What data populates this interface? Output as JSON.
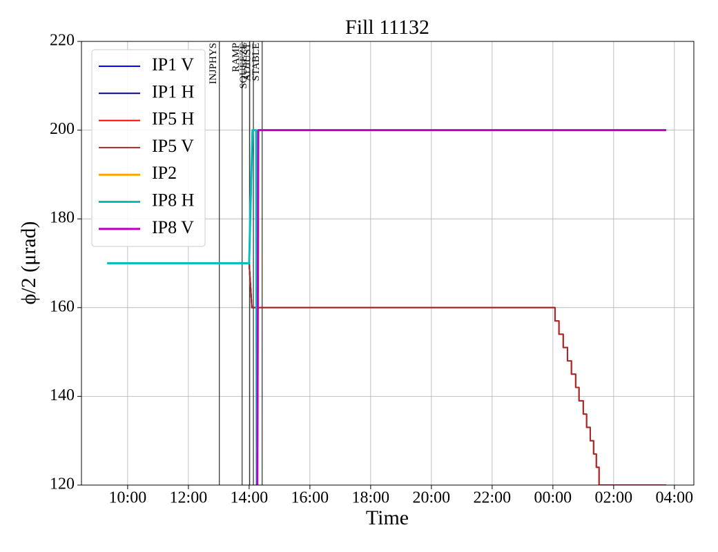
{
  "chart_data": {
    "type": "line",
    "title": "Fill 11132",
    "xlabel": "Time",
    "ylabel": "ϕ/2 (μrad)",
    "xlim": [
      8.48,
      28.64
    ],
    "ylim": [
      120,
      220
    ],
    "xticks": [
      {
        "value": 10,
        "label": "10:00"
      },
      {
        "value": 12,
        "label": "12:00"
      },
      {
        "value": 14,
        "label": "14:00"
      },
      {
        "value": 16,
        "label": "16:00"
      },
      {
        "value": 18,
        "label": "18:00"
      },
      {
        "value": 20,
        "label": "20:00"
      },
      {
        "value": 22,
        "label": "22:00"
      },
      {
        "value": 24,
        "label": "00:00"
      },
      {
        "value": 26,
        "label": "02:00"
      },
      {
        "value": 28,
        "label": "04:00"
      }
    ],
    "yticks": [
      120,
      140,
      160,
      180,
      200,
      220
    ],
    "grid": true,
    "legend": "upper left",
    "events": [
      {
        "label": "INJPHYS",
        "x": 13.02
      },
      {
        "label": "RAMP",
        "x": 13.77
      },
      {
        "label": "SQUEEZE",
        "x": 14.02
      },
      {
        "label": "ADJUST",
        "x": 14.14
      },
      {
        "label": "STABLE",
        "x": 14.43
      }
    ],
    "series": [
      {
        "name": "IP1 V",
        "color": "#0000ff",
        "linewidth": 2,
        "x": [
          9.33,
          14.0,
          14.09,
          14.25,
          14.25
        ],
        "values": [
          170,
          170,
          160,
          160,
          120
        ]
      },
      {
        "name": "IP1 H",
        "color": "#00008b",
        "linewidth": 2,
        "x": [
          9.33,
          14.0,
          14.09,
          14.25,
          14.25
        ],
        "values": [
          170,
          170,
          160,
          160,
          120
        ]
      },
      {
        "name": "IP5 H",
        "color": "#ff0000",
        "linewidth": 2,
        "x": [
          9.33,
          14.0,
          14.09,
          24.07,
          24.07,
          24.2,
          24.2,
          24.34,
          24.34,
          24.48,
          24.48,
          24.61,
          24.61,
          24.75,
          24.75,
          24.86,
          24.86,
          25.0,
          25.0,
          25.11,
          25.11,
          25.23,
          25.23,
          25.34,
          25.34,
          25.43,
          25.43,
          25.52,
          25.52,
          27.73
        ],
        "values": [
          170,
          170,
          160,
          160,
          157,
          157,
          154,
          154,
          151,
          151,
          148,
          148,
          145,
          145,
          142,
          142,
          139,
          139,
          136,
          136,
          133,
          133,
          130,
          130,
          127,
          127,
          124,
          124,
          120,
          120
        ]
      },
      {
        "name": "IP5 V",
        "color": "#a52a2a",
        "linewidth": 2,
        "x": [
          9.33,
          14.0,
          14.09,
          24.07,
          24.07,
          24.2,
          24.2,
          24.34,
          24.34,
          24.48,
          24.48,
          24.61,
          24.61,
          24.75,
          24.75,
          24.86,
          24.86,
          25.0,
          25.0,
          25.11,
          25.11,
          25.23,
          25.23,
          25.34,
          25.34,
          25.43,
          25.43,
          25.52,
          25.52,
          27.73
        ],
        "values": [
          170,
          170,
          160,
          160,
          157,
          157,
          154,
          154,
          151,
          151,
          148,
          148,
          145,
          145,
          142,
          142,
          139,
          139,
          136,
          136,
          133,
          133,
          130,
          130,
          127,
          127,
          124,
          124,
          120,
          120
        ]
      },
      {
        "name": "IP2",
        "color": "#ffa500",
        "linewidth": 3,
        "x": [
          9.33,
          14.0
        ],
        "values": [
          170,
          170
        ]
      },
      {
        "name": "IP8 H",
        "color": "#00bfbf",
        "linewidth": 3,
        "x": [
          9.33,
          14.0,
          14.11,
          14.23,
          14.25
        ],
        "values": [
          170,
          170,
          200,
          200,
          120
        ]
      },
      {
        "name": "IP8 V",
        "color": "#bf00bf",
        "linewidth": 3,
        "x": [
          14.27,
          14.3,
          27.73
        ],
        "values": [
          120,
          200,
          200
        ]
      }
    ]
  }
}
